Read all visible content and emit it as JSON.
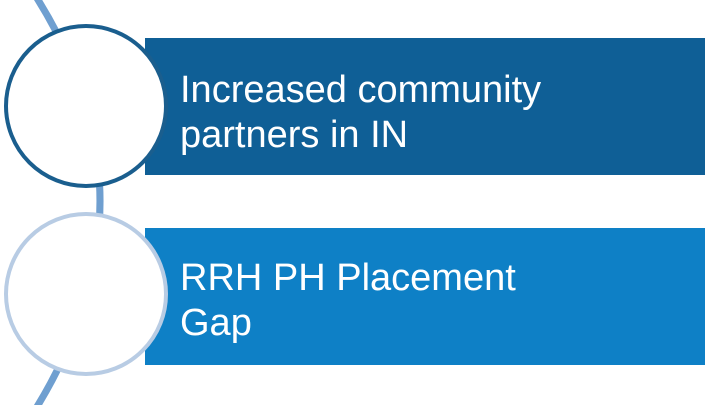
{
  "items": [
    {
      "lines": [
        "Increased community",
        "partners in IN"
      ]
    },
    {
      "lines": [
        "RRH PH Placement",
        "Gap"
      ]
    }
  ]
}
